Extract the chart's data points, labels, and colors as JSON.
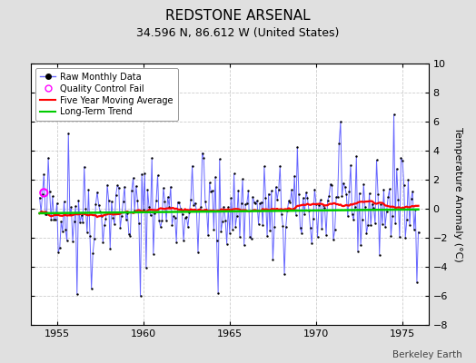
{
  "title": "REDSTONE ARSENAL",
  "subtitle": "34.596 N, 86.612 W (United States)",
  "ylabel": "Temperature Anomaly (°C)",
  "watermark": "Berkeley Earth",
  "xlim": [
    1953.5,
    1976.5
  ],
  "ylim": [
    -8,
    10
  ],
  "yticks": [
    -8,
    -6,
    -4,
    -2,
    0,
    2,
    4,
    6,
    8,
    10
  ],
  "xticks": [
    1955,
    1960,
    1965,
    1970,
    1975
  ],
  "bg_color": "#e0e0e0",
  "plot_bg_color": "#ffffff",
  "grid_color": "#cccccc",
  "raw_color": "#6666ff",
  "dot_color": "#000000",
  "mavg_color": "#ff0000",
  "trend_color": "#00cc00",
  "qc_fail_color": "#ff00ff",
  "qc_fail_x": 1954.25,
  "qc_fail_y": 1.1,
  "trend_slope": 0.012,
  "trend_intercept": -0.18,
  "seed": 42,
  "start_year": 1954.0,
  "n_months": 264,
  "title_fontsize": 11,
  "subtitle_fontsize": 9,
  "tick_fontsize": 8,
  "ylabel_fontsize": 8
}
